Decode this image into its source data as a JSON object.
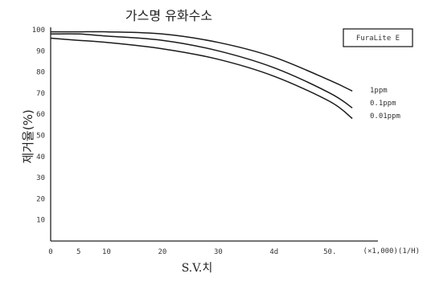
{
  "chart_data": {
    "type": "line",
    "title": "가스명 유화수소",
    "xlabel": "S.V.치",
    "ylabel": "제거율(%)",
    "x_unit_label": "(×1,000)(1/H)",
    "xlim": [
      0,
      55
    ],
    "ylim": [
      0,
      100
    ],
    "x_ticks": [
      0,
      5,
      10,
      20,
      30,
      40,
      50
    ],
    "x_tick_labels": [
      "0",
      "5",
      "10",
      "20",
      "30",
      "4d",
      "50."
    ],
    "y_ticks": [
      0,
      10,
      20,
      30,
      40,
      50,
      60,
      70,
      80,
      90,
      100
    ],
    "y_tick_labels": [
      "",
      "10",
      "20",
      "30",
      "40",
      "50",
      "60",
      "70",
      "80",
      "90",
      "100"
    ],
    "legend_box_label": "FuraLite E",
    "series": [
      {
        "name": "1ppm",
        "x": [
          0,
          5,
          10,
          20,
          30,
          40,
          50,
          54
        ],
        "values": [
          99,
          99,
          99,
          98,
          94,
          87,
          76,
          71
        ]
      },
      {
        "name": "0.1ppm",
        "x": [
          0,
          5,
          10,
          20,
          30,
          40,
          50,
          54
        ],
        "values": [
          98,
          98,
          97,
          95,
          90,
          82,
          70,
          63
        ]
      },
      {
        "name": "0.01ppm",
        "x": [
          0,
          5,
          10,
          20,
          30,
          40,
          50,
          54
        ],
        "values": [
          96,
          95,
          94,
          91,
          86,
          78,
          66,
          58
        ]
      }
    ]
  }
}
